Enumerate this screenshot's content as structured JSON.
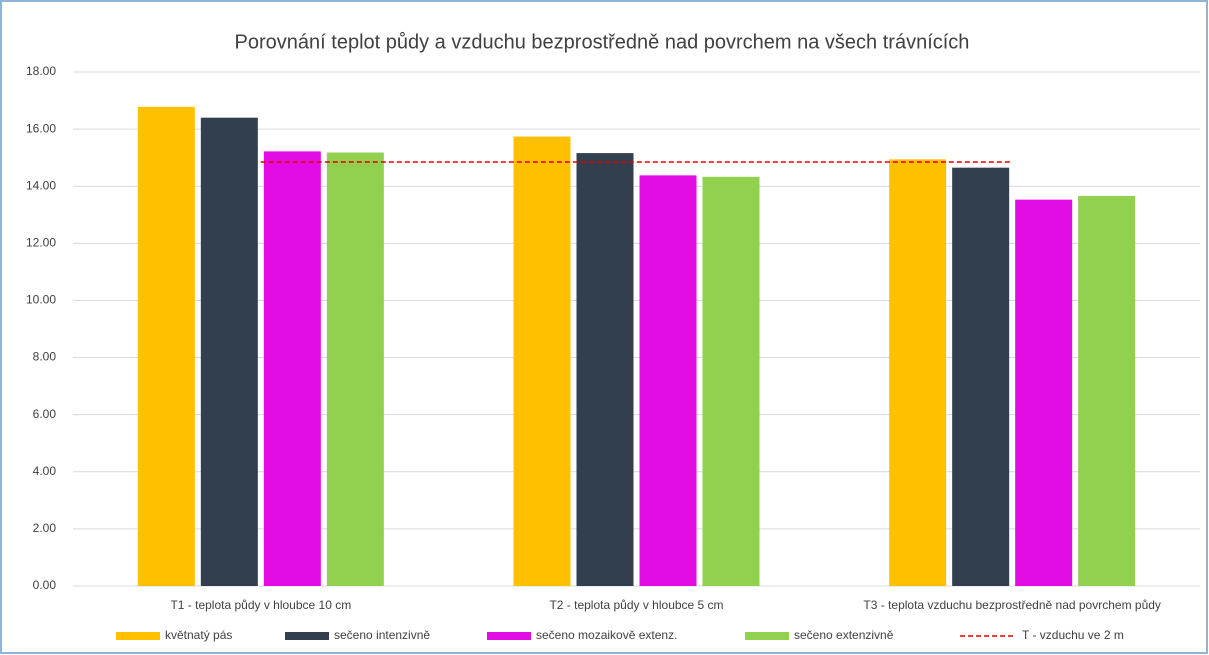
{
  "chart_data": {
    "type": "bar",
    "title": "Porovnání teplot půdy a vzduchu bezprostředně nad povrchem na všech trávnících",
    "categories": [
      "T1 - teplota půdy v hloubce 10 cm",
      "T2 - teplota půdy v hloubce 5 cm",
      "T3 - teplota vzduchu bezprostředně nad povrchem půdy"
    ],
    "series": [
      {
        "name": "květnatý pás",
        "color": "#ffc000",
        "values": [
          16.78,
          15.74,
          14.94
        ]
      },
      {
        "name": "sečeno intenzivně",
        "color": "#323f4f",
        "values": [
          16.4,
          15.16,
          14.65
        ]
      },
      {
        "name": "sečeno mozaikově extenz.",
        "color": "#e30de3",
        "values": [
          15.22,
          14.38,
          13.53
        ]
      },
      {
        "name": "sečeno extenzivně",
        "color": "#92d050",
        "values": [
          15.18,
          14.33,
          13.66
        ]
      },
      {
        "name": "T - vzduchu ve 2 m",
        "color": "#e00000",
        "type": "line",
        "dashed": true,
        "values": [
          14.85,
          14.85,
          14.85
        ]
      }
    ],
    "ylim": [
      0,
      18
    ],
    "yticks": [
      {
        "value": 0,
        "label": "0.00"
      },
      {
        "value": 2,
        "label": "2.00"
      },
      {
        "value": 4,
        "label": "4.00"
      },
      {
        "value": 6,
        "label": "6.00"
      },
      {
        "value": 8,
        "label": "8.00"
      },
      {
        "value": 10,
        "label": "10.00"
      },
      {
        "value": 12,
        "label": "12.00"
      },
      {
        "value": 14,
        "label": "14.00"
      },
      {
        "value": 16,
        "label": "16.00"
      },
      {
        "value": 18,
        "label": "18.00"
      }
    ],
    "grid": true,
    "legend": "bottom"
  }
}
